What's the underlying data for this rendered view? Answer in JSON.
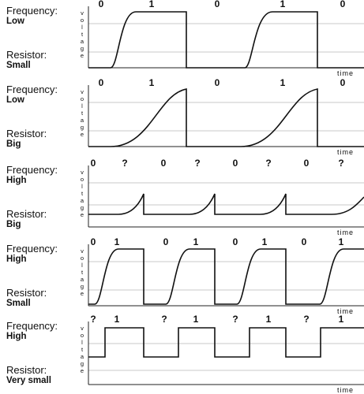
{
  "panels": [
    {
      "frequency_label": "Frequency:",
      "frequency": "Low",
      "resistor_label": "Resistor:",
      "resistor": "Small",
      "bits": [
        "0",
        "1",
        "0",
        "1",
        "0"
      ],
      "y_axis": "voltage",
      "x_axis": "time"
    },
    {
      "frequency_label": "Frequency:",
      "frequency": "Low",
      "resistor_label": "Resistor:",
      "resistor": "Big",
      "bits": [
        "0",
        "1",
        "0",
        "1",
        "0"
      ],
      "y_axis": "voltage",
      "x_axis": "time"
    },
    {
      "frequency_label": "Frequency:",
      "frequency": "High",
      "resistor_label": "Resistor:",
      "resistor": "Big",
      "bits": [
        "0",
        "?",
        "0",
        "?",
        "0",
        "?",
        "0",
        "?"
      ],
      "y_axis": "voltage",
      "x_axis": "time"
    },
    {
      "frequency_label": "Frequency:",
      "frequency": "High",
      "resistor_label": "Resistor:",
      "resistor": "Small",
      "bits": [
        "0",
        "1",
        "0",
        "1",
        "0",
        "1",
        "0",
        "1"
      ],
      "y_axis": "voltage",
      "x_axis": "time"
    },
    {
      "frequency_label": "Frequency:",
      "frequency": "High",
      "resistor_label": "Resistor:",
      "resistor": "Very small",
      "bits": [
        "?",
        "1",
        "?",
        "1",
        "?",
        "1",
        "?",
        "1"
      ],
      "y_axis": "voltage",
      "x_axis": "time"
    }
  ]
}
